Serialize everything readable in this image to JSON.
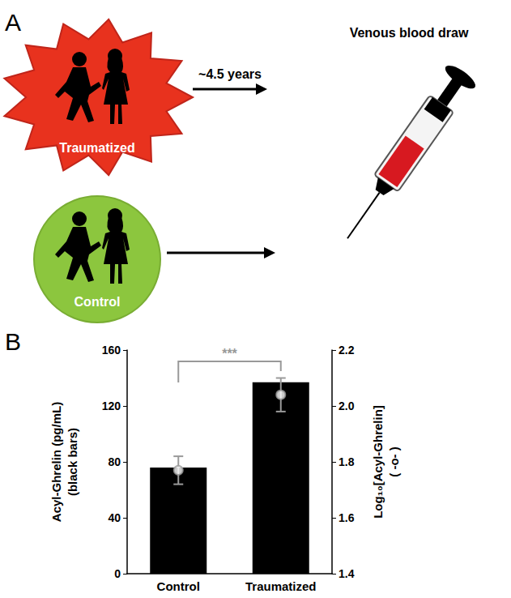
{
  "panel_a": {
    "label": "A",
    "groups": [
      {
        "label": "Traumatized",
        "color": "#e8321e"
      },
      {
        "label": "Control",
        "color": "#8cc63e"
      }
    ],
    "interval": "~4.5 years",
    "outcome": "Venous blood draw"
  },
  "chart_data": {
    "type": "bar",
    "panel_label": "B",
    "categories": [
      "Control",
      "Traumatized"
    ],
    "ylabel": [
      "Acyl-Ghrelin (pg/mL)",
      "(black bars)"
    ],
    "y2label": [
      "Log₁₀[Acyl-Ghrelin]",
      "( -o- )"
    ],
    "ylim": [
      0,
      160
    ],
    "yticks": [
      0,
      40,
      80,
      120,
      160
    ],
    "y2lim": [
      1.4,
      2.2
    ],
    "y2ticks": [
      1.4,
      1.6,
      1.8,
      {
        "value": 2,
        "label": "2.0"
      },
      2.2
    ],
    "series": [
      {
        "type": "bar",
        "color": "#000000",
        "values": [
          76,
          137
        ]
      },
      {
        "type": "scatter",
        "axis": "y2",
        "marker": "circle",
        "color": "#9a9a9a",
        "values": [
          1.77,
          2.04
        ],
        "errors": [
          0.05,
          0.06
        ]
      }
    ],
    "annotations": [
      {
        "text": "***",
        "from": "Control",
        "to": "Traumatized"
      }
    ]
  }
}
